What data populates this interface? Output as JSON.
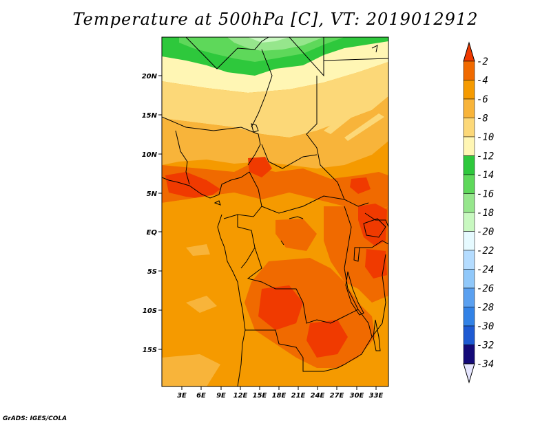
{
  "title": "Temperature at 500hPa [C], VT: 2019012912",
  "footer": "GrADS: IGES/COLA",
  "map": {
    "lat_labels": [
      "20N",
      "15N",
      "10N",
      "5N",
      "EQ",
      "5S",
      "10S",
      "15S"
    ],
    "lon_labels": [
      "3E",
      "6E",
      "9E",
      "12E",
      "15E",
      "18E",
      "21E",
      "24E",
      "27E",
      "30E",
      "33E"
    ],
    "region": "West-Central Africa",
    "field": "Temperature at 500hPa"
  },
  "colorbar": {
    "labels": [
      "-2",
      "-4",
      "-6",
      "-8",
      "-10",
      "-12",
      "-14",
      "-16",
      "-18",
      "-20",
      "-22",
      "-24",
      "-26",
      "-28",
      "-30",
      "-32",
      "-34"
    ],
    "colors": [
      "#f03a00",
      "#f06a00",
      "#f59a00",
      "#f8b43a",
      "#fcd878",
      "#fff6b4",
      "#2ec83c",
      "#5ed85a",
      "#96e68c",
      "#c8f8c0",
      "#e6faff",
      "#b4dcff",
      "#90c8fa",
      "#5aa0f0",
      "#3282e6",
      "#1e5ad2",
      "#0a32be",
      "#140a78"
    ],
    "top_arrow_color": "#f03a00",
    "bottom_arrow_color": "#e6e6ff"
  },
  "palette": {
    "lt_m6": "#f59a00",
    "m6_m4": "#f06a00",
    "m4_m2": "#f03a00",
    "m8_m6": "#f8b43a",
    "m10_m8": "#fcd878",
    "m12_m10": "#fff6b4",
    "m14_m12": "#2ec83c",
    "m16_m14": "#5ed85a",
    "m18_m16": "#96e68c",
    "m20_m18": "#c8f8c0"
  }
}
